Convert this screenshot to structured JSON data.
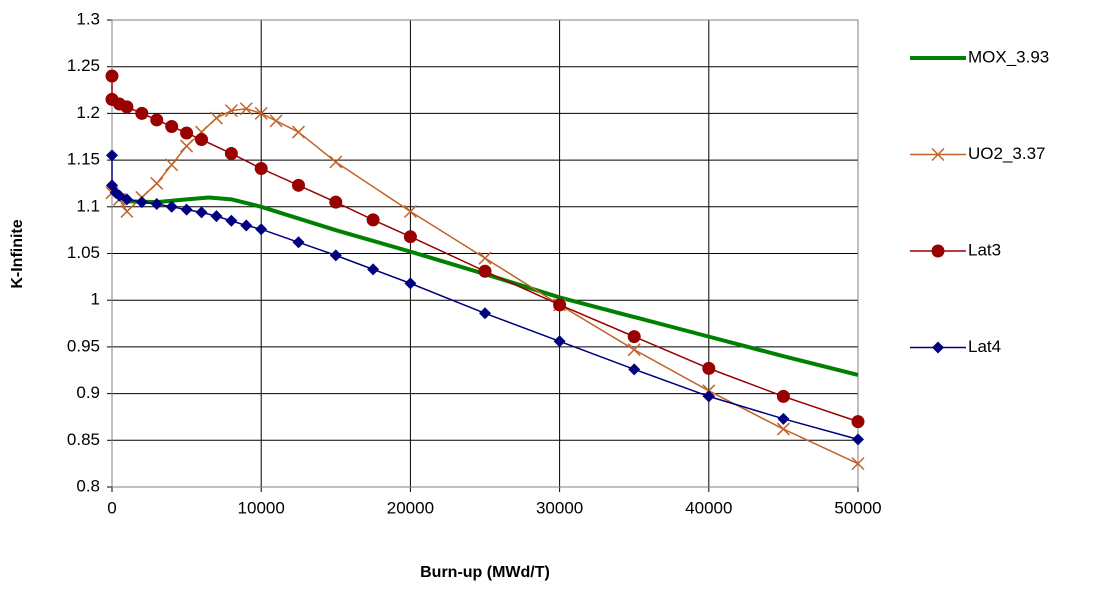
{
  "chart_data": {
    "type": "line",
    "x_label": "Burn-up (MWd/T)",
    "y_label": "K-Infinite",
    "xlim": [
      0,
      50000
    ],
    "xticks": [
      0,
      10000,
      20000,
      30000,
      40000,
      50000
    ],
    "ylim": [
      0.8,
      1.3
    ],
    "yticks": [
      0.8,
      0.85,
      0.9,
      0.95,
      1,
      1.05,
      1.1,
      1.15,
      1.2,
      1.25,
      1.3
    ],
    "grid": true,
    "legend": "right",
    "series": [
      {
        "name": "MOX_3.93",
        "color": "#008000",
        "marker": "none",
        "line_width": 4,
        "x": [
          0,
          1000,
          3000,
          5000,
          6500,
          8000,
          10000,
          15000,
          20000,
          25000,
          30000,
          35000,
          40000,
          45000,
          50000
        ],
        "values": [
          1.118,
          1.106,
          1.105,
          1.108,
          1.11,
          1.108,
          1.1,
          1.075,
          1.052,
          1.028,
          1.003,
          0.982,
          0.961,
          0.94,
          0.92
        ]
      },
      {
        "name": "UO2_3.37",
        "color": "#C0642A",
        "marker": "x",
        "line_width": 1.5,
        "x": [
          0,
          500,
          1000,
          2000,
          3000,
          4000,
          5000,
          6000,
          7000,
          8000,
          9000,
          10000,
          11000,
          12500,
          15000,
          20000,
          25000,
          30000,
          35000,
          40000,
          45000,
          50000
        ],
        "values": [
          1.115,
          1.108,
          1.095,
          1.11,
          1.125,
          1.145,
          1.165,
          1.18,
          1.195,
          1.203,
          1.205,
          1.2,
          1.192,
          1.18,
          1.148,
          1.095,
          1.045,
          0.995,
          0.947,
          0.903,
          0.862,
          0.825
        ]
      },
      {
        "name": "Lat3",
        "color": "#990000",
        "marker": "circle",
        "line_width": 1.5,
        "x": [
          0,
          0,
          500,
          1000,
          2000,
          3000,
          4000,
          5000,
          6000,
          8000,
          10000,
          12500,
          15000,
          17500,
          20000,
          25000,
          30000,
          35000,
          40000,
          45000,
          50000
        ],
        "values": [
          1.24,
          1.215,
          1.21,
          1.207,
          1.2,
          1.193,
          1.186,
          1.179,
          1.172,
          1.157,
          1.141,
          1.123,
          1.105,
          1.086,
          1.068,
          1.031,
          0.995,
          0.961,
          0.927,
          0.897,
          0.87
        ]
      },
      {
        "name": "Lat4",
        "color": "#000080",
        "marker": "diamond",
        "line_width": 1.5,
        "x": [
          0,
          0,
          250,
          500,
          1000,
          2000,
          3000,
          4000,
          5000,
          6000,
          7000,
          8000,
          9000,
          10000,
          12500,
          15000,
          17500,
          20000,
          25000,
          30000,
          35000,
          40000,
          45000,
          50000
        ],
        "values": [
          1.155,
          1.123,
          1.115,
          1.112,
          1.108,
          1.105,
          1.103,
          1.1,
          1.097,
          1.094,
          1.09,
          1.085,
          1.08,
          1.076,
          1.062,
          1.048,
          1.033,
          1.018,
          0.986,
          0.956,
          0.926,
          0.897,
          0.873,
          0.851
        ]
      }
    ]
  }
}
